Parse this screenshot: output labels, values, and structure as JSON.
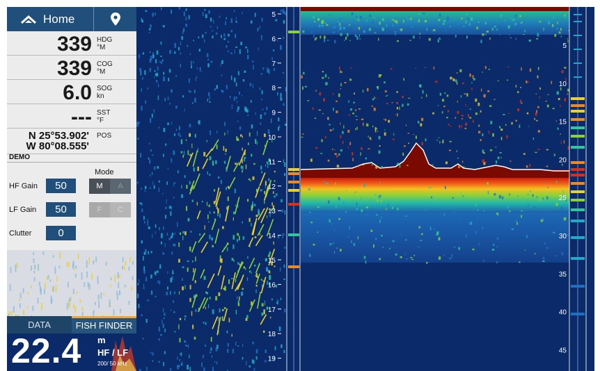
{
  "sidebar": {
    "home_label": "Home",
    "readings": [
      {
        "value": "339",
        "unit_top": "HDG",
        "unit_bottom": "°M"
      },
      {
        "value": "339",
        "unit_top": "COG",
        "unit_bottom": "°M"
      },
      {
        "value": "6.0",
        "unit_top": "SOG",
        "unit_bottom": "kn"
      },
      {
        "value": "---",
        "unit_top": "SST",
        "unit_bottom": "°F"
      }
    ],
    "position": {
      "lat": "N 25°53.902'",
      "lon": "W 80°08.555'",
      "label": "POS"
    },
    "demo_label": "DEMO",
    "mode_label": "Mode",
    "controls": [
      {
        "label": "HF Gain",
        "value": "50"
      },
      {
        "label": "LF Gain",
        "value": "50"
      },
      {
        "label": "Clutter",
        "value": "0"
      }
    ],
    "mode_buttons": [
      {
        "left": "M",
        "right": "A"
      },
      {
        "left": "F",
        "right": "C"
      }
    ],
    "tabs": [
      "DATA",
      "FISH FINDER"
    ],
    "depth": {
      "value": "22.4",
      "unit": "m",
      "freq": "HF / LF",
      "khz": "200/ 50 kHz"
    }
  },
  "scale_left": [
    "5",
    "6",
    "7",
    "8",
    "9",
    "10",
    "11",
    "12",
    "13",
    "14",
    "15",
    "16",
    "17",
    "18",
    "19"
  ],
  "scale_right": [
    "5",
    "10",
    "15",
    "20",
    "25",
    "30",
    "35",
    "40",
    "45"
  ],
  "colors": {
    "accent": "#f3a531",
    "bar": "#1f4f7a",
    "water": "#0a2a6a",
    "bottom": "#7a0a00"
  }
}
